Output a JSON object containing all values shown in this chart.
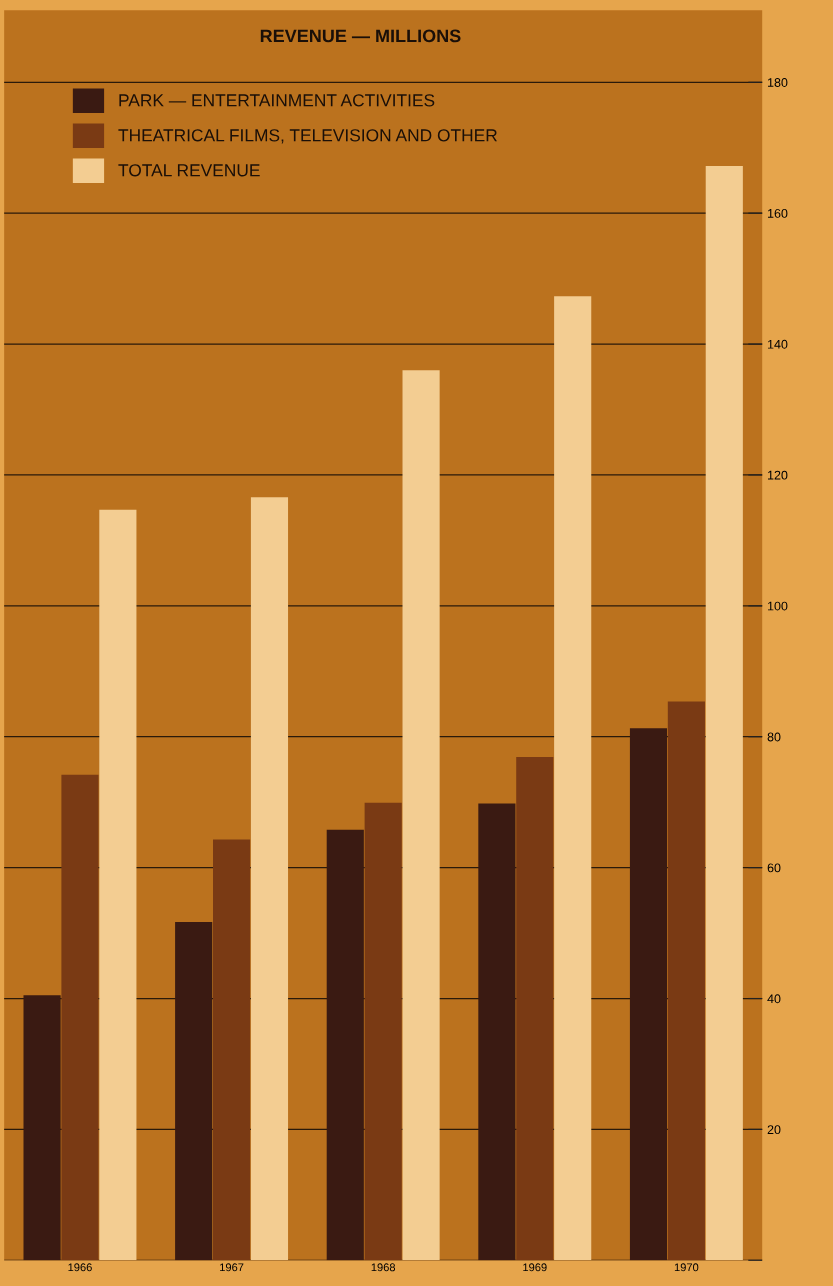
{
  "chart_data": {
    "type": "bar",
    "title": "REVENUE — MILLIONS",
    "categories": [
      "1966",
      "1967",
      "1968",
      "1969",
      "1970"
    ],
    "series": [
      {
        "name": "PARK — ENTERTAINMENT ACTIVITIES",
        "color": "#3a1a12",
        "values": [
          40.5,
          51.7,
          65.8,
          69.8,
          81.3
        ]
      },
      {
        "name": "THEATRICAL FILMS, TELEVISION AND OTHER",
        "color": "#7a3a14",
        "values": [
          74.2,
          64.3,
          69.9,
          76.9,
          85.4
        ]
      },
      {
        "name": "TOTAL REVENUE",
        "color": "#f3cd92",
        "values": [
          114.7,
          116.6,
          136.0,
          147.3,
          167.2
        ]
      }
    ],
    "ylim": [
      0,
      191
    ],
    "yticks": [
      {
        "value": 0,
        "label": null
      },
      20,
      40,
      60,
      80,
      100,
      120,
      140,
      160,
      180
    ],
    "grid": "y",
    "legend": "top left"
  }
}
